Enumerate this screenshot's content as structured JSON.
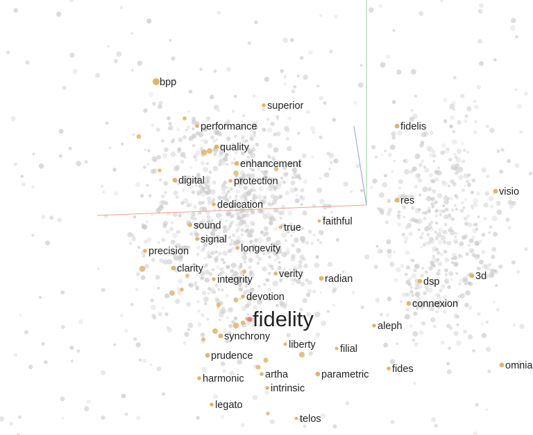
{
  "view": {
    "title": "",
    "focus_word": "fidelity",
    "colors": {
      "background_point": "#c8c8c8",
      "neighbor_point": "#e2b46a",
      "focus_point": "#e87e7e",
      "axis_x": "#f0a090",
      "axis_y": "#8fd88a",
      "axis_z": "#8aa0e0",
      "label_dark": "#111111",
      "label_mid": "#555555",
      "label_light": "#8a8a8a"
    }
  },
  "labels": [
    {
      "text": "fidelity",
      "rank": "focus"
    },
    {
      "text": "bpp",
      "rank": "near"
    },
    {
      "text": "superior",
      "rank": "mid"
    },
    {
      "text": "performance",
      "rank": "mid"
    },
    {
      "text": "quality",
      "rank": "near"
    },
    {
      "text": "enhancement",
      "rank": "near"
    },
    {
      "text": "digital",
      "rank": "near"
    },
    {
      "text": "protection",
      "rank": "mid"
    },
    {
      "text": "dedication",
      "rank": "mid"
    },
    {
      "text": "sound",
      "rank": "mid"
    },
    {
      "text": "signal",
      "rank": "mid"
    },
    {
      "text": "precision",
      "rank": "mid"
    },
    {
      "text": "clarity",
      "rank": "near"
    },
    {
      "text": "integrity",
      "rank": "mid"
    },
    {
      "text": "longevity",
      "rank": "mid"
    },
    {
      "text": "true",
      "rank": "far"
    },
    {
      "text": "faithful",
      "rank": "far"
    },
    {
      "text": "verity",
      "rank": "mid"
    },
    {
      "text": "radian",
      "rank": "near"
    },
    {
      "text": "devotion",
      "rank": "mid"
    },
    {
      "text": "synchrony",
      "rank": "near"
    },
    {
      "text": "liberty",
      "rank": "far"
    },
    {
      "text": "filial",
      "rank": "far"
    },
    {
      "text": "prudence",
      "rank": "near"
    },
    {
      "text": "harmonic",
      "rank": "mid"
    },
    {
      "text": "artha",
      "rank": "mid"
    },
    {
      "text": "intrinsic",
      "rank": "mid"
    },
    {
      "text": "parametric",
      "rank": "near"
    },
    {
      "text": "legato",
      "rank": "mid"
    },
    {
      "text": "telos",
      "rank": "far"
    },
    {
      "text": "fidelis",
      "rank": "near"
    },
    {
      "text": "res",
      "rank": "near"
    },
    {
      "text": "visio",
      "rank": "near"
    },
    {
      "text": "dsp",
      "rank": "near"
    },
    {
      "text": "3d",
      "rank": "near"
    },
    {
      "text": "connexion",
      "rank": "near"
    },
    {
      "text": "aleph",
      "rank": "mid"
    },
    {
      "text": "fides",
      "rank": "mid"
    },
    {
      "text": "omnia",
      "rank": "near"
    }
  ]
}
